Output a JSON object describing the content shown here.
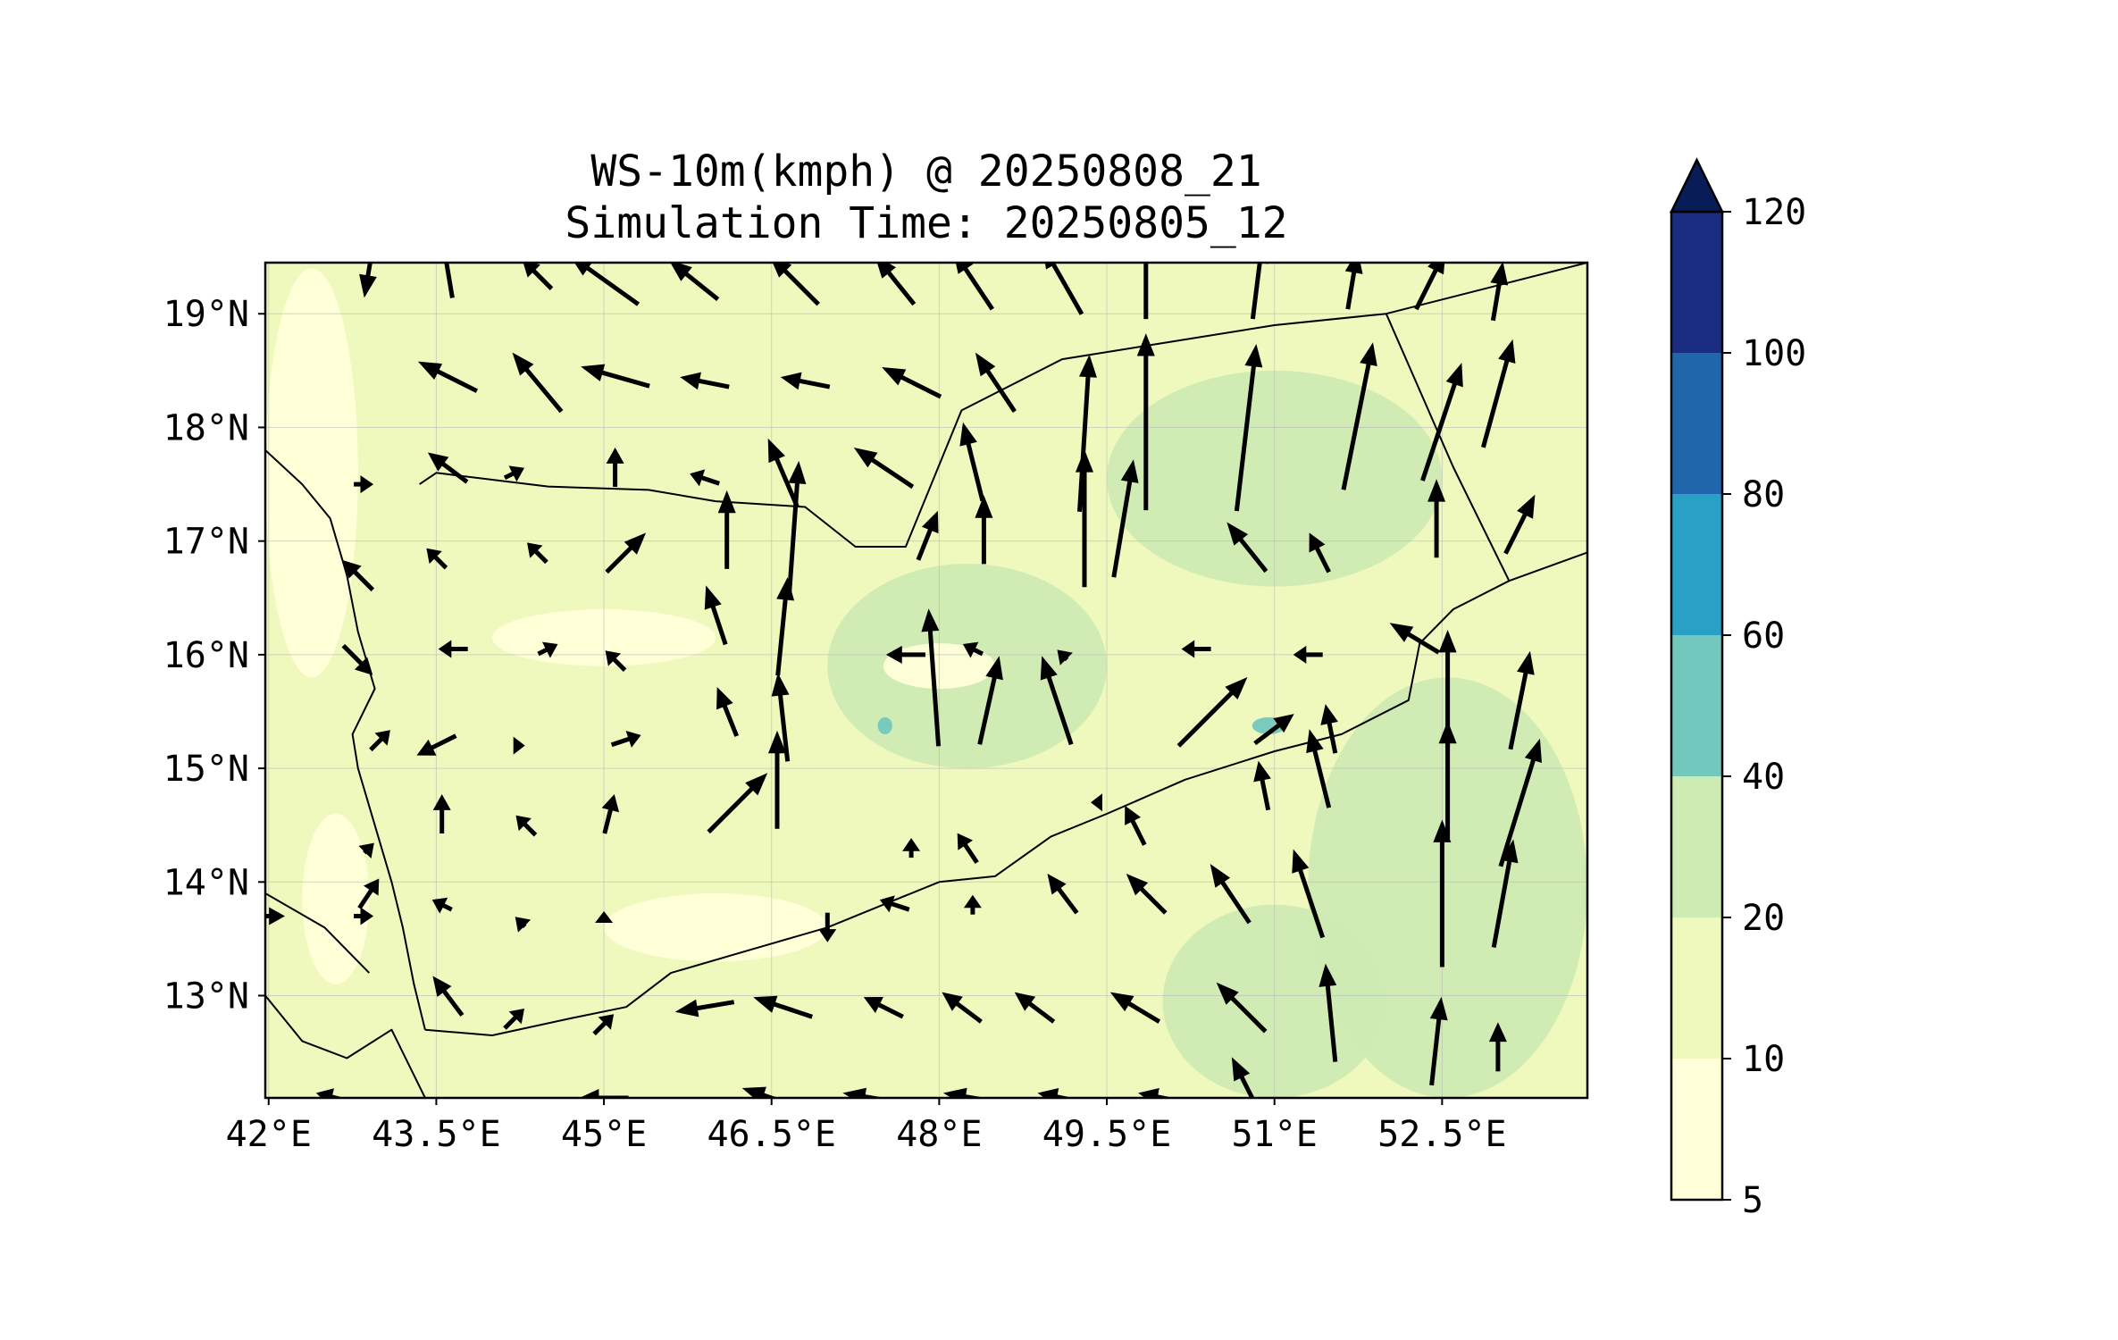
{
  "figure": {
    "title": "WS-10m(kmph) @ 20250808_21",
    "subtitle": "Simulation Time: 20250805_12"
  },
  "map": {
    "extent": {
      "lon": [
        41.97,
        53.8
      ],
      "lat": [
        12.1,
        19.45
      ]
    },
    "lon_ticks": [
      "42°E",
      "43.5°E",
      "45°E",
      "46.5°E",
      "48°E",
      "49.5°E",
      "51°E",
      "52.5°E"
    ],
    "lon_tick_values": [
      42.0,
      43.5,
      45.0,
      46.5,
      48.0,
      49.5,
      51.0,
      52.5
    ],
    "lat_ticks": [
      "13°N",
      "14°N",
      "15°N",
      "16°N",
      "17°N",
      "18°N",
      "19°N"
    ],
    "lat_tick_values": [
      13,
      14,
      15,
      16,
      17,
      18,
      19
    ],
    "gridlines": true,
    "background_level_color": "#eff8bd",
    "wind_field_regions": [
      {
        "level": "20-40",
        "lon": [
          47.0,
          49.5
        ],
        "lat": [
          15.0,
          16.8
        ]
      },
      {
        "level": "20-40",
        "lon": [
          49.5,
          52.5
        ],
        "lat": [
          16.6,
          18.5
        ]
      },
      {
        "level": "20-40",
        "lon": [
          51.3,
          53.8
        ],
        "lat": [
          12.1,
          15.8
        ]
      },
      {
        "level": "20-40",
        "lon": [
          50.0,
          52.0
        ],
        "lat": [
          12.1,
          13.8
        ]
      },
      {
        "level": "5-10",
        "lon": [
          42.3,
          42.9
        ],
        "lat": [
          13.1,
          14.6
        ]
      },
      {
        "level": "5-10",
        "lon": [
          44.0,
          46.0
        ],
        "lat": [
          15.9,
          16.4
        ]
      },
      {
        "level": "5-10",
        "lon": [
          47.5,
          48.5
        ],
        "lat": [
          15.7,
          16.1
        ]
      },
      {
        "level": "5-10",
        "lon": [
          45.0,
          47.0
        ],
        "lat": [
          13.3,
          13.9
        ]
      },
      {
        "level": "5-10",
        "lon": [
          41.97,
          42.8
        ],
        "lat": [
          15.8,
          19.4
        ]
      },
      {
        "level": "40-60",
        "lon": [
          47.45,
          47.58
        ],
        "lat": [
          15.3,
          15.45
        ]
      },
      {
        "level": "40-60",
        "lon": [
          50.8,
          51.1
        ],
        "lat": [
          15.3,
          15.45
        ]
      }
    ],
    "wind_vectors": [
      {
        "lon": 42.9,
        "lat": 19.4,
        "u": -0.1,
        "v": -0.6
      },
      {
        "lon": 43.6,
        "lat": 19.4,
        "u": -0.1,
        "v": 0.6
      },
      {
        "lon": 44.4,
        "lat": 19.35,
        "u": -0.3,
        "v": 0.3
      },
      {
        "lon": 45.0,
        "lat": 19.3,
        "u": -0.7,
        "v": 0.5
      },
      {
        "lon": 45.8,
        "lat": 19.3,
        "u": -0.5,
        "v": 0.4
      },
      {
        "lon": 46.7,
        "lat": 19.3,
        "u": -0.5,
        "v": 0.5
      },
      {
        "lon": 47.6,
        "lat": 19.3,
        "u": -0.4,
        "v": 0.5
      },
      {
        "lon": 48.3,
        "lat": 19.3,
        "u": -0.4,
        "v": 0.6
      },
      {
        "lon": 49.1,
        "lat": 19.3,
        "u": -0.4,
        "v": 0.7
      },
      {
        "lon": 49.85,
        "lat": 19.3,
        "u": 0.0,
        "v": 0.8
      },
      {
        "lon": 50.85,
        "lat": 19.3,
        "u": 0.1,
        "v": 0.8
      },
      {
        "lon": 51.7,
        "lat": 19.3,
        "u": 0.1,
        "v": 0.6
      },
      {
        "lon": 52.4,
        "lat": 19.3,
        "u": 0.3,
        "v": 0.6
      },
      {
        "lon": 53.0,
        "lat": 19.2,
        "u": 0.1,
        "v": 0.6
      },
      {
        "lon": 43.6,
        "lat": 18.45,
        "u": -0.6,
        "v": 0.3
      },
      {
        "lon": 44.4,
        "lat": 18.4,
        "u": -0.5,
        "v": 0.6
      },
      {
        "lon": 45.1,
        "lat": 18.45,
        "u": -0.7,
        "v": 0.2
      },
      {
        "lon": 45.9,
        "lat": 18.4,
        "u": -0.5,
        "v": 0.1
      },
      {
        "lon": 46.8,
        "lat": 18.4,
        "u": -0.5,
        "v": 0.1
      },
      {
        "lon": 47.75,
        "lat": 18.4,
        "u": -0.6,
        "v": 0.3
      },
      {
        "lon": 48.5,
        "lat": 18.4,
        "u": -0.4,
        "v": 0.6
      },
      {
        "lon": 49.3,
        "lat": 17.95,
        "u": 0.1,
        "v": 1.6
      },
      {
        "lon": 49.85,
        "lat": 18.05,
        "u": 0.0,
        "v": 1.8
      },
      {
        "lon": 50.75,
        "lat": 18.0,
        "u": 0.2,
        "v": 1.7
      },
      {
        "lon": 51.75,
        "lat": 18.1,
        "u": 0.3,
        "v": 1.5
      },
      {
        "lon": 52.5,
        "lat": 18.05,
        "u": 0.4,
        "v": 1.2
      },
      {
        "lon": 53.0,
        "lat": 18.3,
        "u": 0.3,
        "v": 1.1
      },
      {
        "lon": 43.6,
        "lat": 17.65,
        "u": -0.4,
        "v": 0.3
      },
      {
        "lon": 44.2,
        "lat": 17.6,
        "u": 0.2,
        "v": 0.1
      },
      {
        "lon": 45.1,
        "lat": 17.65,
        "u": 0.0,
        "v": 0.4
      },
      {
        "lon": 45.9,
        "lat": 17.55,
        "u": -0.3,
        "v": 0.1
      },
      {
        "lon": 46.6,
        "lat": 17.6,
        "u": -0.3,
        "v": 0.7
      },
      {
        "lon": 47.5,
        "lat": 17.65,
        "u": -0.6,
        "v": 0.4
      },
      {
        "lon": 48.3,
        "lat": 17.7,
        "u": -0.2,
        "v": 0.8
      },
      {
        "lon": 42.85,
        "lat": 17.5,
        "u": 0.2,
        "v": 0.0
      },
      {
        "lon": 43.5,
        "lat": 16.85,
        "u": -0.2,
        "v": 0.2
      },
      {
        "lon": 44.4,
        "lat": 16.9,
        "u": -0.2,
        "v": 0.2
      },
      {
        "lon": 45.2,
        "lat": 16.9,
        "u": 0.4,
        "v": 0.4
      },
      {
        "lon": 46.1,
        "lat": 17.1,
        "u": 0.0,
        "v": 0.8
      },
      {
        "lon": 46.7,
        "lat": 17.1,
        "u": 0.1,
        "v": 1.4
      },
      {
        "lon": 47.9,
        "lat": 17.05,
        "u": 0.2,
        "v": 0.5
      },
      {
        "lon": 48.4,
        "lat": 17.1,
        "u": 0.0,
        "v": 0.7
      },
      {
        "lon": 49.3,
        "lat": 17.2,
        "u": 0.0,
        "v": 1.4
      },
      {
        "lon": 49.65,
        "lat": 17.2,
        "u": 0.2,
        "v": 1.2
      },
      {
        "lon": 50.75,
        "lat": 16.95,
        "u": -0.4,
        "v": 0.5
      },
      {
        "lon": 51.4,
        "lat": 16.9,
        "u": -0.2,
        "v": 0.4
      },
      {
        "lon": 52.45,
        "lat": 17.2,
        "u": 0.0,
        "v": 0.8
      },
      {
        "lon": 53.2,
        "lat": 17.15,
        "u": 0.3,
        "v": 0.6
      },
      {
        "lon": 42.8,
        "lat": 16.7,
        "u": -0.3,
        "v": 0.3
      },
      {
        "lon": 42.8,
        "lat": 15.95,
        "u": 0.3,
        "v": -0.3
      },
      {
        "lon": 43.65,
        "lat": 16.05,
        "u": -0.3,
        "v": 0.0
      },
      {
        "lon": 44.5,
        "lat": 16.05,
        "u": 0.2,
        "v": 0.1
      },
      {
        "lon": 45.1,
        "lat": 15.95,
        "u": -0.2,
        "v": 0.2
      },
      {
        "lon": 46.0,
        "lat": 16.35,
        "u": -0.2,
        "v": 0.6
      },
      {
        "lon": 46.6,
        "lat": 16.25,
        "u": 0.1,
        "v": 1.0
      },
      {
        "lon": 47.7,
        "lat": 16.0,
        "u": -0.4,
        "v": 0.0
      },
      {
        "lon": 48.3,
        "lat": 16.05,
        "u": -0.2,
        "v": 0.1
      },
      {
        "lon": 49.1,
        "lat": 16.0,
        "u": -0.1,
        "v": 0.1
      },
      {
        "lon": 50.3,
        "lat": 16.05,
        "u": -0.3,
        "v": 0.0
      },
      {
        "lon": 51.3,
        "lat": 16.0,
        "u": -0.3,
        "v": 0.0
      },
      {
        "lon": 52.25,
        "lat": 16.15,
        "u": -0.5,
        "v": 0.3
      },
      {
        "lon": 43.0,
        "lat": 15.25,
        "u": 0.2,
        "v": 0.2
      },
      {
        "lon": 43.5,
        "lat": 15.2,
        "u": -0.4,
        "v": -0.2
      },
      {
        "lon": 44.25,
        "lat": 15.2,
        "u": 0.1,
        "v": 0.0
      },
      {
        "lon": 45.2,
        "lat": 15.25,
        "u": 0.3,
        "v": 0.1
      },
      {
        "lon": 46.1,
        "lat": 15.5,
        "u": -0.2,
        "v": 0.5
      },
      {
        "lon": 46.6,
        "lat": 15.45,
        "u": -0.1,
        "v": 0.9
      },
      {
        "lon": 47.95,
        "lat": 15.8,
        "u": -0.1,
        "v": 1.4
      },
      {
        "lon": 48.45,
        "lat": 15.6,
        "u": 0.2,
        "v": 0.9
      },
      {
        "lon": 49.05,
        "lat": 15.6,
        "u": -0.3,
        "v": 0.9
      },
      {
        "lon": 50.45,
        "lat": 15.5,
        "u": 0.7,
        "v": 0.7
      },
      {
        "lon": 51.0,
        "lat": 15.35,
        "u": 0.4,
        "v": 0.3
      },
      {
        "lon": 51.5,
        "lat": 15.35,
        "u": -0.1,
        "v": 0.5
      },
      {
        "lon": 52.55,
        "lat": 15.7,
        "u": 0.0,
        "v": 1.2
      },
      {
        "lon": 53.2,
        "lat": 15.6,
        "u": 0.2,
        "v": 1.0
      },
      {
        "lon": 42.9,
        "lat": 14.3,
        "u": 0.1,
        "v": 0.1
      },
      {
        "lon": 43.55,
        "lat": 14.6,
        "u": 0.0,
        "v": 0.4
      },
      {
        "lon": 44.3,
        "lat": 14.5,
        "u": -0.2,
        "v": 0.2
      },
      {
        "lon": 45.05,
        "lat": 14.6,
        "u": 0.1,
        "v": 0.4
      },
      {
        "lon": 46.2,
        "lat": 14.7,
        "u": 0.6,
        "v": 0.6
      },
      {
        "lon": 46.55,
        "lat": 14.9,
        "u": 0.0,
        "v": 1.0
      },
      {
        "lon": 47.75,
        "lat": 14.3,
        "u": 0.0,
        "v": 0.2
      },
      {
        "lon": 48.25,
        "lat": 14.3,
        "u": -0.2,
        "v": 0.3
      },
      {
        "lon": 49.4,
        "lat": 14.7,
        "u": -0.1,
        "v": 0.0
      },
      {
        "lon": 49.75,
        "lat": 14.5,
        "u": -0.2,
        "v": 0.4
      },
      {
        "lon": 50.9,
        "lat": 14.85,
        "u": -0.1,
        "v": 0.5
      },
      {
        "lon": 51.4,
        "lat": 15.0,
        "u": -0.2,
        "v": 0.8
      },
      {
        "lon": 52.55,
        "lat": 14.9,
        "u": 0.0,
        "v": 1.2
      },
      {
        "lon": 53.2,
        "lat": 14.7,
        "u": 0.4,
        "v": 1.3
      },
      {
        "lon": 42.9,
        "lat": 13.9,
        "u": 0.2,
        "v": 0.3
      },
      {
        "lon": 43.55,
        "lat": 13.8,
        "u": -0.2,
        "v": 0.1
      },
      {
        "lon": 44.25,
        "lat": 13.65,
        "u": -0.1,
        "v": 0.1
      },
      {
        "lon": 45.0,
        "lat": 13.7,
        "u": 0.0,
        "v": 0.1
      },
      {
        "lon": 47.0,
        "lat": 13.6,
        "u": 0.0,
        "v": -0.3
      },
      {
        "lon": 47.6,
        "lat": 13.8,
        "u": -0.3,
        "v": 0.1
      },
      {
        "lon": 48.3,
        "lat": 13.8,
        "u": 0.0,
        "v": 0.2
      },
      {
        "lon": 49.1,
        "lat": 13.9,
        "u": -0.3,
        "v": 0.4
      },
      {
        "lon": 49.85,
        "lat": 13.9,
        "u": -0.4,
        "v": 0.4
      },
      {
        "lon": 50.6,
        "lat": 13.9,
        "u": -0.4,
        "v": 0.6
      },
      {
        "lon": 51.3,
        "lat": 13.9,
        "u": -0.3,
        "v": 0.9
      },
      {
        "lon": 52.5,
        "lat": 13.9,
        "u": 0.0,
        "v": 1.5
      },
      {
        "lon": 53.05,
        "lat": 13.9,
        "u": 0.2,
        "v": 1.1
      },
      {
        "lon": 41.97,
        "lat": 13.7,
        "u": 0.4,
        "v": 0.0
      },
      {
        "lon": 42.85,
        "lat": 13.7,
        "u": 0.2,
        "v": 0.0
      },
      {
        "lon": 43.6,
        "lat": 13.0,
        "u": -0.3,
        "v": 0.4
      },
      {
        "lon": 44.2,
        "lat": 12.8,
        "u": 0.2,
        "v": 0.2
      },
      {
        "lon": 45.0,
        "lat": 12.75,
        "u": 0.2,
        "v": 0.2
      },
      {
        "lon": 45.9,
        "lat": 12.9,
        "u": -0.6,
        "v": -0.1
      },
      {
        "lon": 46.6,
        "lat": 12.9,
        "u": -0.6,
        "v": 0.2
      },
      {
        "lon": 47.5,
        "lat": 12.9,
        "u": -0.4,
        "v": 0.2
      },
      {
        "lon": 48.2,
        "lat": 12.9,
        "u": -0.4,
        "v": 0.3
      },
      {
        "lon": 48.85,
        "lat": 12.9,
        "u": -0.4,
        "v": 0.3
      },
      {
        "lon": 49.75,
        "lat": 12.9,
        "u": -0.5,
        "v": 0.3
      },
      {
        "lon": 50.7,
        "lat": 12.9,
        "u": -0.5,
        "v": 0.5
      },
      {
        "lon": 51.5,
        "lat": 12.85,
        "u": -0.1,
        "v": 1.0
      },
      {
        "lon": 52.45,
        "lat": 12.6,
        "u": 0.1,
        "v": 0.9
      },
      {
        "lon": 53.0,
        "lat": 12.55,
        "u": 0.0,
        "v": 0.5
      },
      {
        "lon": 42.6,
        "lat": 12.1,
        "u": -0.4,
        "v": 0.1
      },
      {
        "lon": 45.0,
        "lat": 12.1,
        "u": -0.5,
        "v": 0.0
      },
      {
        "lon": 46.5,
        "lat": 12.1,
        "u": -0.6,
        "v": 0.2
      },
      {
        "lon": 47.4,
        "lat": 12.1,
        "u": -0.6,
        "v": 0.1
      },
      {
        "lon": 48.3,
        "lat": 12.1,
        "u": -0.6,
        "v": 0.1
      },
      {
        "lon": 49.1,
        "lat": 12.1,
        "u": -0.5,
        "v": 0.1
      },
      {
        "lon": 50.0,
        "lat": 12.1,
        "u": -0.5,
        "v": 0.1
      },
      {
        "lon": 50.75,
        "lat": 12.2,
        "u": -0.3,
        "v": 0.6
      }
    ],
    "borders": [
      {
        "name": "yemen-saudi-border",
        "coords": [
          [
            43.35,
            17.5
          ],
          [
            43.5,
            17.6
          ],
          [
            44.5,
            17.48
          ],
          [
            45.4,
            17.45
          ],
          [
            46.0,
            17.35
          ],
          [
            46.8,
            17.3
          ],
          [
            47.25,
            16.95
          ],
          [
            47.7,
            16.95
          ],
          [
            48.2,
            18.15
          ],
          [
            49.1,
            18.6
          ],
          [
            51.0,
            18.9
          ],
          [
            52.0,
            19.0
          ],
          [
            53.8,
            19.45
          ]
        ]
      },
      {
        "name": "yemen-oman-border",
        "coords": [
          [
            52.0,
            19.0
          ],
          [
            52.6,
            17.65
          ],
          [
            53.1,
            16.65
          ]
        ]
      },
      {
        "name": "coastline-red-sea",
        "coords": [
          [
            41.97,
            17.8
          ],
          [
            42.3,
            17.5
          ],
          [
            42.55,
            17.2
          ],
          [
            42.7,
            16.7
          ],
          [
            42.8,
            16.2
          ],
          [
            42.95,
            15.7
          ],
          [
            42.75,
            15.3
          ],
          [
            42.8,
            15.0
          ],
          [
            42.95,
            14.5
          ],
          [
            43.1,
            14.0
          ],
          [
            43.2,
            13.6
          ],
          [
            43.3,
            13.1
          ],
          [
            43.4,
            12.7
          ]
        ]
      },
      {
        "name": "coastline-gulf-of-aden",
        "coords": [
          [
            43.4,
            12.7
          ],
          [
            44.0,
            12.65
          ],
          [
            44.7,
            12.8
          ],
          [
            45.2,
            12.9
          ],
          [
            45.6,
            13.2
          ],
          [
            46.3,
            13.4
          ],
          [
            47.0,
            13.6
          ],
          [
            47.5,
            13.8
          ],
          [
            48.0,
            14.0
          ],
          [
            48.5,
            14.05
          ],
          [
            49.0,
            14.4
          ],
          [
            49.5,
            14.6
          ],
          [
            50.2,
            14.9
          ],
          [
            51.0,
            15.15
          ],
          [
            51.6,
            15.3
          ],
          [
            52.2,
            15.6
          ],
          [
            52.3,
            16.1
          ],
          [
            52.6,
            16.4
          ],
          [
            53.1,
            16.65
          ],
          [
            53.8,
            16.9
          ]
        ]
      },
      {
        "name": "coastline-horn-of-africa",
        "coords": [
          [
            41.97,
            13.0
          ],
          [
            42.3,
            12.6
          ],
          [
            42.7,
            12.45
          ],
          [
            43.1,
            12.7
          ],
          [
            43.3,
            12.3
          ],
          [
            43.4,
            12.1
          ]
        ]
      },
      {
        "name": "coastline-eritrea",
        "coords": [
          [
            41.97,
            13.9
          ],
          [
            42.5,
            13.6
          ],
          [
            42.9,
            13.2
          ]
        ]
      }
    ]
  },
  "colorbar": {
    "levels": [
      {
        "label": "5",
        "value": 5,
        "color": "#ffffd9"
      },
      {
        "label": "10",
        "value": 10,
        "color": "#eff8bd"
      },
      {
        "label": "20",
        "value": 20,
        "color": "#cdebb3"
      },
      {
        "label": "40",
        "value": 40,
        "color": "#73c8bd"
      },
      {
        "label": "60",
        "value": 60,
        "color": "#2aa0c7"
      },
      {
        "label": "80",
        "value": 80,
        "color": "#2165ab"
      },
      {
        "label": "100",
        "value": 100,
        "color": "#1a2c80"
      },
      {
        "label": "120",
        "value": 120,
        "color": "#081d58"
      }
    ],
    "extend": "max"
  }
}
